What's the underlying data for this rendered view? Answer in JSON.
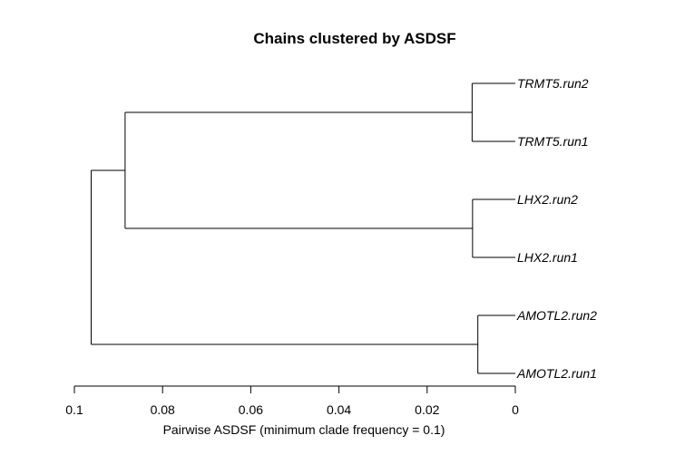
{
  "chart_data": {
    "type": "dendrogram",
    "title": "Chains clustered by ASDSF",
    "xlabel": "Pairwise ASDSF (minimum clade frequency = 0.1)",
    "xlim": [
      0.1,
      0
    ],
    "ticks": [
      {
        "value": 0.1,
        "label": "0.1"
      },
      {
        "value": 0.08,
        "label": "0.08"
      },
      {
        "value": 0.06,
        "label": "0.06"
      },
      {
        "value": 0.04,
        "label": "0.04"
      },
      {
        "value": 0.02,
        "label": "0.02"
      },
      {
        "value": 0,
        "label": "0"
      }
    ],
    "leaves": [
      "TRMT5.run2",
      "TRMT5.run1",
      "LHX2.run2",
      "LHX2.run1",
      "AMOTL2.run2",
      "AMOTL2.run1"
    ],
    "merges": [
      {
        "id": "m1",
        "children": [
          "TRMT5.run2",
          "TRMT5.run1"
        ],
        "height": 0.0098
      },
      {
        "id": "m2",
        "children": [
          "LHX2.run2",
          "LHX2.run1"
        ],
        "height": 0.0097
      },
      {
        "id": "m3",
        "children": [
          "AMOTL2.run2",
          "AMOTL2.run1"
        ],
        "height": 0.0085
      },
      {
        "id": "m4",
        "children": [
          "m1",
          "m2"
        ],
        "height": 0.0885
      },
      {
        "id": "m5",
        "children": [
          "m4",
          "m3"
        ],
        "height": 0.0962
      }
    ]
  }
}
